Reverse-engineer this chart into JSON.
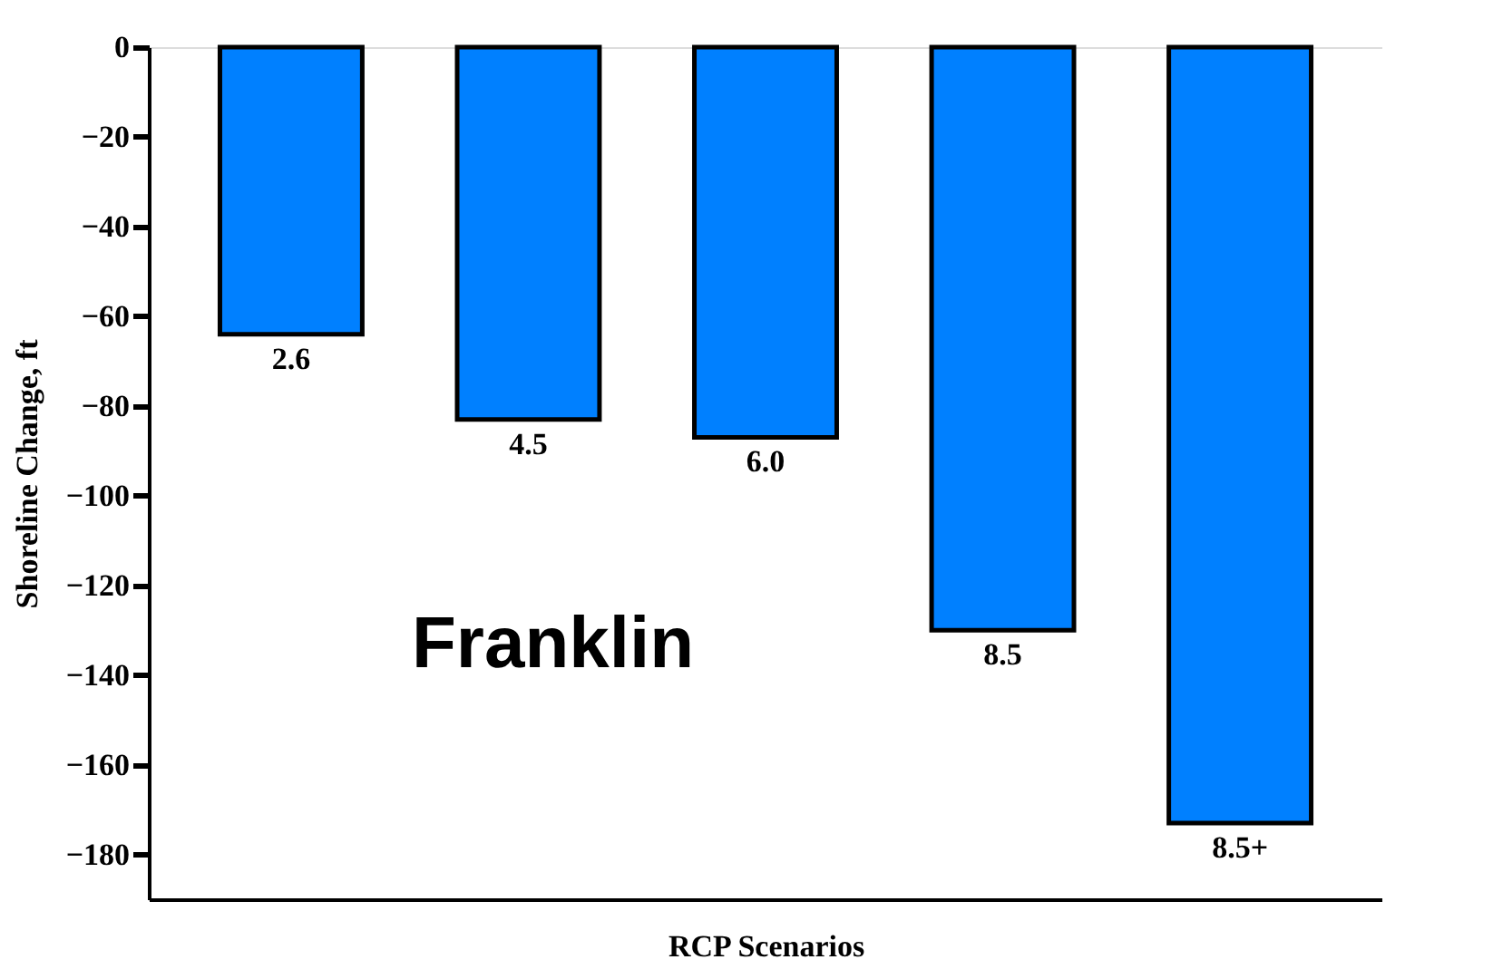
{
  "chart_data": {
    "type": "bar",
    "categories": [
      "2.6",
      "4.5",
      "6.0",
      "8.5",
      "8.5+"
    ],
    "values": [
      -64,
      -83,
      -87,
      -130,
      -173
    ],
    "color": "#0080ff",
    "xlabel": "RCP Scenarios",
    "ylabel": "Shoreline Change, ft",
    "ylim": [
      -190,
      0
    ],
    "yticks": [
      0,
      -20,
      -40,
      -60,
      -80,
      -100,
      -120,
      -140,
      -160,
      -180
    ],
    "annotations": [
      "Franklin"
    ]
  }
}
